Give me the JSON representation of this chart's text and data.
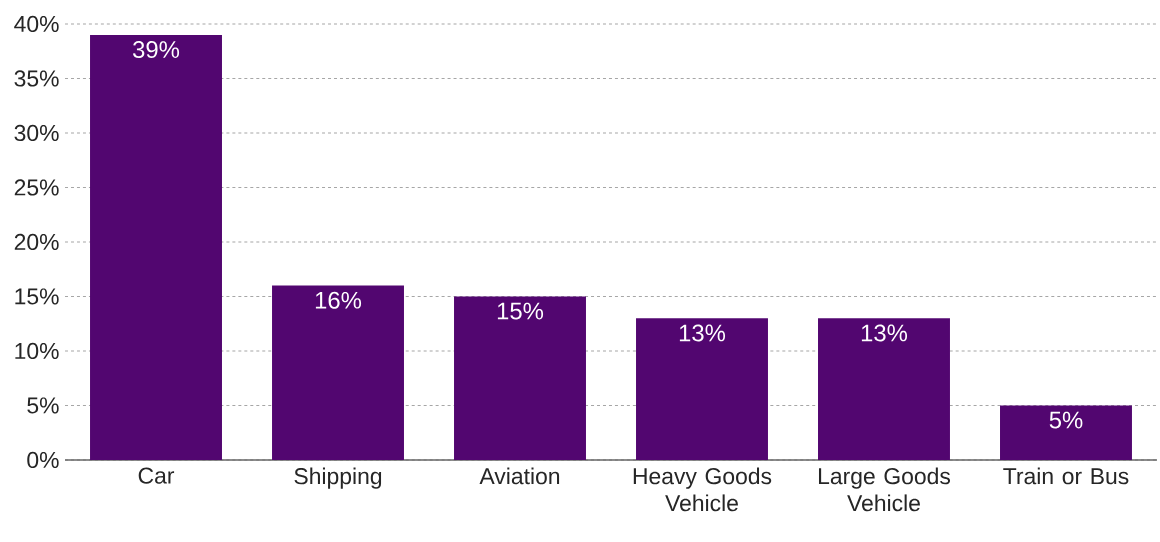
{
  "chart_data": {
    "type": "bar",
    "categories": [
      "Car",
      "Shipping",
      "Aviation",
      "Heavy Goods Vehicle",
      "Large Goods Vehicle",
      "Train or Bus"
    ],
    "values": [
      39,
      16,
      15,
      13,
      13,
      5
    ],
    "value_labels": [
      "39%",
      "16%",
      "15%",
      "13%",
      "13%",
      "5%"
    ],
    "color": "#520670",
    "ylim": [
      0,
      40
    ],
    "yticks": [
      {
        "value": 0,
        "label": "0%"
      },
      {
        "value": 5,
        "label": "5%"
      },
      {
        "value": 10,
        "label": "10%"
      },
      {
        "value": 15,
        "label": "15%"
      },
      {
        "value": 20,
        "label": "20%"
      },
      {
        "value": 25,
        "label": "25%"
      },
      {
        "value": 30,
        "label": "30%"
      },
      {
        "value": 35,
        "label": "35%"
      },
      {
        "value": 40,
        "label": "40%"
      }
    ],
    "grid": "y"
  }
}
